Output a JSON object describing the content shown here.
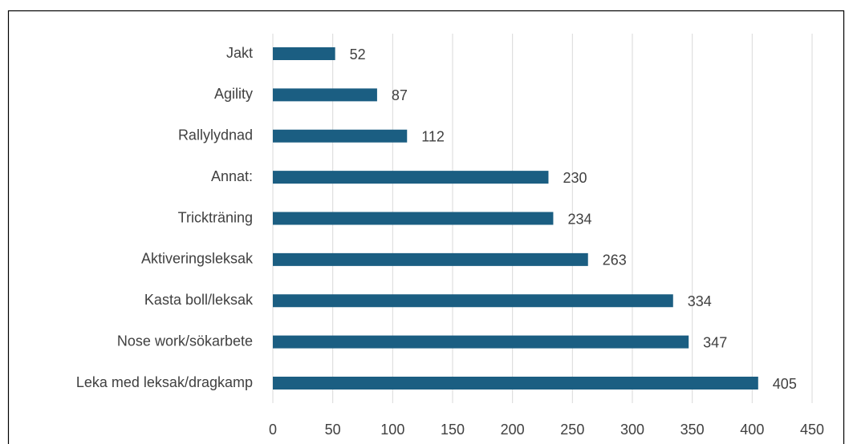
{
  "chart_data": {
    "type": "bar",
    "orientation": "horizontal",
    "categories": [
      "Jakt",
      "Agility",
      "Rallylydnad",
      "Annat:",
      "Trickträning",
      "Aktiveringsleksak",
      "Kasta boll/leksak",
      "Nose work/sökarbete",
      "Leka med leksak/dragkamp"
    ],
    "values": [
      52,
      87,
      112,
      230,
      234,
      263,
      334,
      347,
      405
    ],
    "color": "#1b5e82",
    "xlim": [
      0,
      450
    ],
    "xticks": [
      0,
      50,
      100,
      150,
      200,
      250,
      300,
      350,
      400,
      450
    ],
    "grid": true
  }
}
